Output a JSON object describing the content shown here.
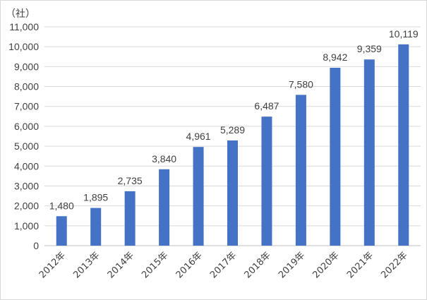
{
  "chart_data": {
    "type": "bar",
    "title": "",
    "xlabel": "",
    "ylabel": "",
    "unit_label": "（社）",
    "categories": [
      "2012年",
      "2013年",
      "2014年",
      "2015年",
      "2016年",
      "2017年",
      "2018年",
      "2019年",
      "2020年",
      "2021年",
      "2022年"
    ],
    "values": [
      1480,
      1895,
      2735,
      3840,
      4961,
      5289,
      6487,
      7580,
      8942,
      9359,
      10119
    ],
    "value_labels": [
      "1,480",
      "1,895",
      "2,735",
      "3,840",
      "4,961",
      "5,289",
      "6,487",
      "7,580",
      "8,942",
      "9,359",
      "10,119"
    ],
    "ylim": [
      0,
      11000
    ],
    "y_ticks": [
      0,
      1000,
      2000,
      3000,
      4000,
      5000,
      6000,
      7000,
      8000,
      9000,
      10000,
      11000
    ],
    "y_tick_labels": [
      "0",
      "1,000",
      "2,000",
      "3,000",
      "4,000",
      "5,000",
      "6,000",
      "7,000",
      "8,000",
      "9,000",
      "10,000",
      "11,000"
    ],
    "grid": true,
    "legend": "none",
    "bar_color": "#4472c4"
  }
}
